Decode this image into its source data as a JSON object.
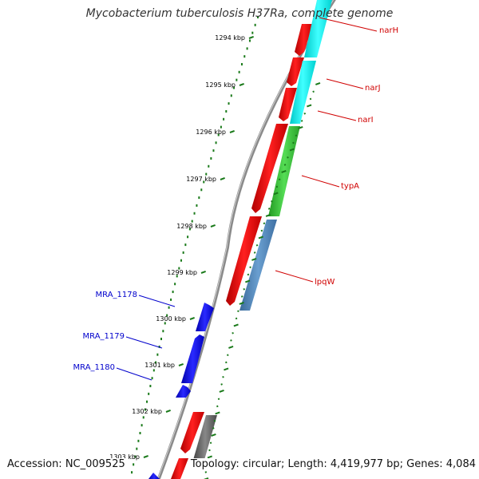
{
  "title": "Mycobacterium tuberculosis H37Ra, complete genome",
  "footer": {
    "accession": "Accession: NC_009525",
    "summary": "Topology: circular; Length: 4,419,977 bp; Genes: 4,084"
  },
  "ticks": [
    {
      "label": "1294 kbp"
    },
    {
      "label": "1295 kbp"
    },
    {
      "label": "1296 kbp"
    },
    {
      "label": "1297 kbp"
    },
    {
      "label": "1298 kbp"
    },
    {
      "label": "1299 kbp"
    },
    {
      "label": "1300 kbp"
    },
    {
      "label": "1301 kbp"
    },
    {
      "label": "1302 kbp"
    },
    {
      "label": "1303 kbp"
    }
  ],
  "gene_labels": [
    {
      "name": "narH",
      "color": "#d00000"
    },
    {
      "name": "narJ",
      "color": "#d00000"
    },
    {
      "name": "narI",
      "color": "#d00000"
    },
    {
      "name": "typA",
      "color": "#d00000"
    },
    {
      "name": "lpqW",
      "color": "#d00000"
    },
    {
      "name": "MRA_1178",
      "color": "#0000cc"
    },
    {
      "name": "MRA_1179",
      "color": "#0000cc"
    },
    {
      "name": "MRA_1180",
      "color": "#0000cc"
    }
  ],
  "colors": {
    "backbone": "#888888",
    "cds_forward": "#ff0000",
    "cds_reverse": "#0000ff",
    "cyan_track": "#00ffff",
    "green_track": "#33cc33",
    "steelblue_track": "#4a7fb5",
    "gray_track": "#666666",
    "gc_ticks": "#1a7a1a",
    "tick_marks": "#1a7a1a"
  }
}
